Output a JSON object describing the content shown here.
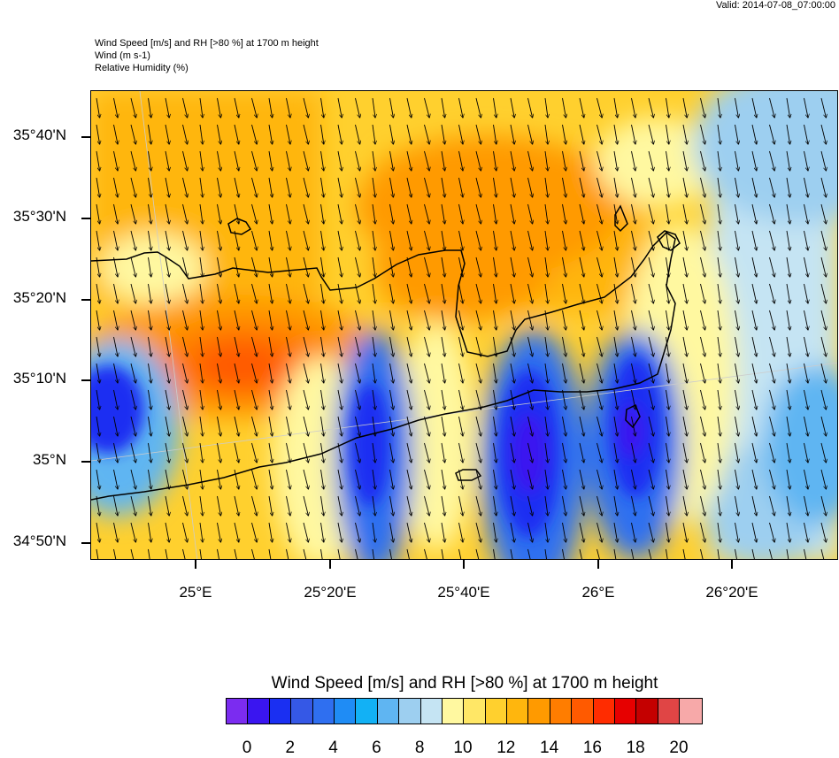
{
  "valid_time": "Valid: 2014-07-08_07:00:00",
  "header": {
    "line1": "Wind Speed [m/s] and RH [>80 %] at 1700 m height",
    "line2": "Wind   (m s-1)",
    "line3": "Relative Humidity   (%)"
  },
  "lat_labels": [
    "35°40'N",
    "35°30'N",
    "35°20'N",
    "35°10'N",
    "35°N",
    "34°50'N"
  ],
  "lon_labels": [
    "25°E",
    "25°20'E",
    "25°40'E",
    "26°E",
    "26°20'E"
  ],
  "colorbar": {
    "title": "Wind Speed [m/s] and RH [>80 %] at 1700 m height",
    "colors": [
      "#7b2cf0",
      "#3a15f0",
      "#1a2ff2",
      "#3558e6",
      "#2f6ff0",
      "#1f8cf5",
      "#12b1f5",
      "#5fb5f2",
      "#9dcff0",
      "#c5e4f3",
      "#fff8a0",
      "#ffe766",
      "#ffd02e",
      "#ffb60d",
      "#ff9a00",
      "#ff7d00",
      "#ff5a00",
      "#ff2c00",
      "#e60000",
      "#c40000",
      "#e04545",
      "#f7a9a9"
    ],
    "labels": [
      "0",
      "2",
      "4",
      "6",
      "8",
      "10",
      "12",
      "14",
      "16",
      "18",
      "20"
    ]
  }
}
